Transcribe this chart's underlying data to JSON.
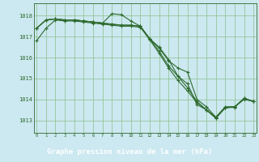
{
  "title": "Graphe pression niveau de la mer (hPa)",
  "bg_color": "#cce8f0",
  "label_bg_color": "#2d6a2d",
  "label_text_color": "#ffffff",
  "grid_color": "#8abf8a",
  "line_color": "#2d6a2d",
  "x_ticks": [
    0,
    1,
    2,
    3,
    4,
    5,
    6,
    7,
    8,
    9,
    10,
    11,
    12,
    13,
    14,
    15,
    16,
    17,
    18,
    19,
    20,
    21,
    22,
    23
  ],
  "y_ticks": [
    1013,
    1014,
    1015,
    1016,
    1017,
    1018
  ],
  "ylim": [
    1012.4,
    1018.6
  ],
  "xlim": [
    -0.3,
    23.3
  ],
  "series": [
    [
      1016.8,
      1017.4,
      1017.8,
      1017.75,
      1017.75,
      1017.7,
      1017.65,
      1017.6,
      1017.55,
      1017.5,
      1017.5,
      1017.45,
      1016.85,
      1016.2,
      1015.5,
      1014.9,
      1014.4,
      1013.85,
      1013.5,
      1013.1,
      1013.6,
      1013.65,
      1014.0,
      1013.9
    ],
    [
      1017.4,
      1017.8,
      1017.85,
      1017.8,
      1017.8,
      1017.75,
      1017.7,
      1017.65,
      1018.1,
      1018.05,
      1017.75,
      1017.5,
      1016.9,
      1016.3,
      1015.6,
      1015.1,
      1014.55,
      1013.9,
      1013.5,
      1013.1,
      1013.6,
      1013.65,
      1014.05,
      1013.9
    ],
    [
      1017.4,
      1017.8,
      1017.85,
      1017.8,
      1017.8,
      1017.75,
      1017.7,
      1017.65,
      1017.6,
      1017.55,
      1017.55,
      1017.5,
      1016.9,
      1016.45,
      1015.85,
      1015.5,
      1015.3,
      1014.0,
      1013.65,
      1013.15,
      1013.65,
      1013.65,
      1014.05,
      1013.9
    ],
    [
      1017.4,
      1017.8,
      1017.85,
      1017.8,
      1017.8,
      1017.75,
      1017.7,
      1017.65,
      1017.6,
      1017.55,
      1017.55,
      1017.5,
      1016.9,
      1016.5,
      1015.9,
      1015.1,
      1014.75,
      1013.75,
      1013.5,
      1013.15,
      1013.6,
      1013.62,
      1014.05,
      1013.9
    ]
  ]
}
